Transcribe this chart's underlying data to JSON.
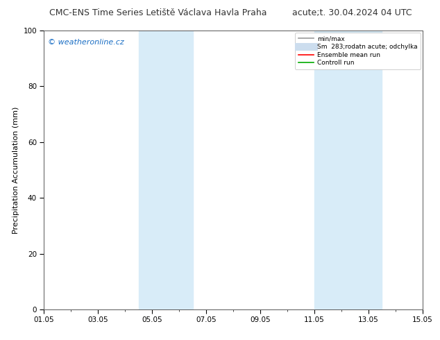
{
  "title_left": "CMC-ENS Time Series Letiště Václava Havla Praha",
  "title_right": "acute;t. 30.04.2024 04 UTC",
  "ylabel": "Precipitation Accumulation (mm)",
  "watermark": "© weatheronline.cz",
  "watermark_color": "#1a6ec4",
  "ylim": [
    0,
    100
  ],
  "yticks": [
    0,
    20,
    40,
    60,
    80,
    100
  ],
  "xtick_labels": [
    "01.05",
    "03.05",
    "05.05",
    "07.05",
    "09.05",
    "11.05",
    "13.05",
    "15.05"
  ],
  "xtick_positions": [
    0,
    2,
    4,
    6,
    8,
    10,
    12,
    14
  ],
  "shade_bands": [
    {
      "start": 3.5,
      "end": 5.5
    },
    {
      "start": 10.0,
      "end": 12.5
    }
  ],
  "shade_color": "#d8ecf8",
  "legend_entries": [
    {
      "label": "min/max",
      "color": "#999999",
      "lw": 1.2,
      "type": "line"
    },
    {
      "label": "Sm  283;rodatn acute; odchylka",
      "color": "#ccddee",
      "lw": 8,
      "type": "line"
    },
    {
      "label": "Ensemble mean run",
      "color": "#ff0000",
      "lw": 1.2,
      "type": "line"
    },
    {
      "label": "Controll run",
      "color": "#00aa00",
      "lw": 1.2,
      "type": "line"
    }
  ],
  "bg_color": "#ffffff",
  "plot_bg_color": "#ffffff",
  "title_fontsize": 9,
  "tick_fontsize": 7.5,
  "ylabel_fontsize": 8,
  "watermark_fontsize": 8
}
